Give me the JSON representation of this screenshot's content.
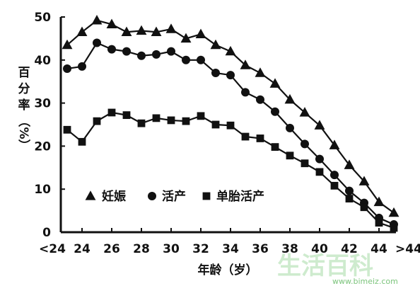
{
  "chart_data": {
    "type": "line",
    "title": "",
    "xlabel": "年龄（岁）",
    "ylabel_lines": [
      "百",
      "分",
      "率",
      "（%）"
    ],
    "x_ticks": [
      "<24",
      "24",
      "26",
      "28",
      "30",
      "32",
      "34",
      "36",
      "38",
      "40",
      "42",
      "44",
      ">44"
    ],
    "y_ticks": [
      "0",
      "10",
      "20",
      "30",
      "40",
      "50"
    ],
    "ylim": [
      0,
      50
    ],
    "xlim": [
      22,
      45
    ],
    "grid": false,
    "legend_position": "bottom-left",
    "series": [
      {
        "name": "妊娠",
        "marker": "triangle",
        "x": [
          23,
          24,
          25,
          26,
          27,
          28,
          29,
          30,
          31,
          32,
          33,
          34,
          35,
          36,
          37,
          38,
          39,
          40,
          41,
          42,
          43,
          44,
          45
        ],
        "values": [
          43.5,
          46.5,
          49.2,
          48.3,
          46.5,
          46.8,
          46.5,
          47.2,
          45.0,
          46.0,
          43.5,
          42.0,
          38.8,
          37.0,
          34.5,
          30.8,
          27.8,
          24.8,
          20.2,
          15.6,
          11.8,
          7.0,
          4.5
        ]
      },
      {
        "name": "活产",
        "marker": "circle",
        "x": [
          23,
          24,
          25,
          26,
          27,
          28,
          29,
          30,
          31,
          32,
          33,
          34,
          35,
          36,
          37,
          38,
          39,
          40,
          41,
          42,
          43,
          44,
          45
        ],
        "values": [
          38.0,
          38.5,
          44.0,
          42.5,
          42.0,
          41.0,
          41.3,
          42.0,
          40.0,
          40.0,
          37.0,
          36.5,
          32.5,
          30.8,
          28.0,
          24.2,
          20.5,
          17.0,
          13.3,
          9.6,
          6.8,
          3.3,
          1.8
        ]
      },
      {
        "name": "单胎活产",
        "marker": "square",
        "x": [
          23,
          24,
          25,
          26,
          27,
          28,
          29,
          30,
          31,
          32,
          33,
          34,
          35,
          36,
          37,
          38,
          39,
          40,
          41,
          42,
          43,
          44,
          45
        ],
        "values": [
          23.8,
          21.0,
          25.8,
          27.8,
          27.2,
          25.3,
          26.5,
          26.0,
          25.8,
          27.0,
          25.0,
          24.8,
          22.2,
          21.8,
          19.8,
          17.8,
          16.0,
          14.0,
          10.8,
          7.8,
          5.8,
          2.2,
          1.0
        ]
      }
    ]
  },
  "watermark": {
    "url": "www.bimeiz.com",
    "logo_glyphs": "生活百科"
  }
}
